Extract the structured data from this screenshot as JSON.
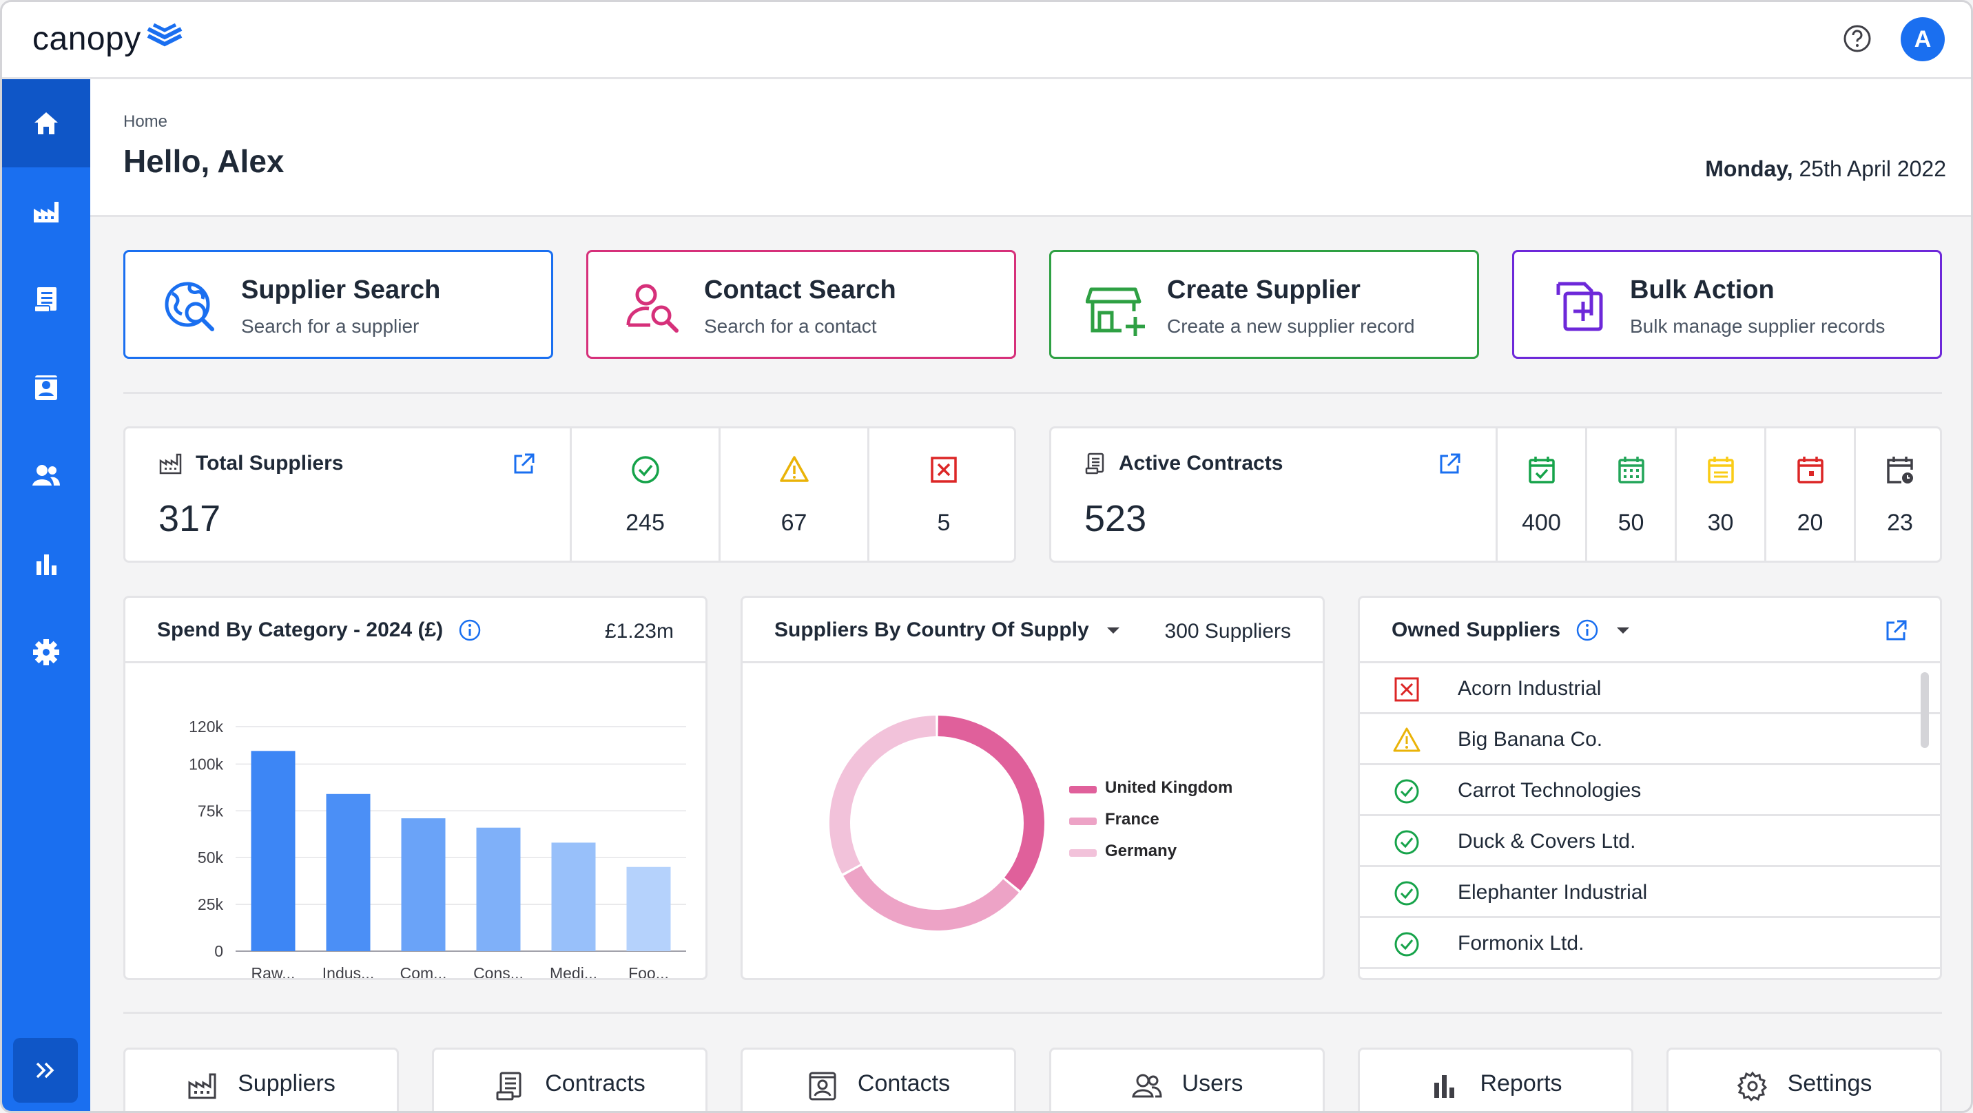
{
  "app": {
    "logo_text": "canopy",
    "avatar_initial": "A"
  },
  "header": {
    "breadcrumb": "Home",
    "greeting": "Hello, Alex",
    "date_day": "Monday,",
    "date_rest": "25th April 2022"
  },
  "actions": [
    {
      "title": "Supplier Search",
      "subtitle": "Search for a supplier",
      "color": "#1a6ff0",
      "icon": "globe-search-icon"
    },
    {
      "title": "Contact Search",
      "subtitle": "Search for a contact",
      "color": "#d6307a",
      "icon": "person-search-icon"
    },
    {
      "title": "Create Supplier",
      "subtitle": "Create a new supplier record",
      "color": "#2ea043",
      "icon": "store-add-icon"
    },
    {
      "title": "Bulk Action",
      "subtitle": "Bulk manage supplier records",
      "color": "#6d28d9",
      "icon": "bulk-add-icon"
    }
  ],
  "suppliers_stats": {
    "label": "Total Suppliers",
    "total": "317",
    "approved": "245",
    "warning": "67",
    "rejected": "5"
  },
  "contracts_stats": {
    "label": "Active Contracts",
    "total": "523",
    "values": [
      "400",
      "50",
      "30",
      "20",
      "23"
    ]
  },
  "spend_panel": {
    "title": "Spend By Category - 2024 (£)",
    "total": "£1.23m"
  },
  "country_panel": {
    "title": "Suppliers By Country Of Supply",
    "count": "300 Suppliers"
  },
  "owned_panel": {
    "title": "Owned Suppliers",
    "items": [
      {
        "name": "Acorn Industrial",
        "status": "rejected"
      },
      {
        "name": "Big Banana Co.",
        "status": "warning"
      },
      {
        "name": "Carrot Technologies",
        "status": "approved"
      },
      {
        "name": "Duck & Covers Ltd.",
        "status": "approved"
      },
      {
        "name": "Elephanter Industrial",
        "status": "approved"
      },
      {
        "name": "Formonix Ltd.",
        "status": "approved"
      }
    ]
  },
  "nav_cards": [
    "Suppliers",
    "Contracts",
    "Contacts",
    "Users",
    "Reports",
    "Settings"
  ],
  "chart_data": [
    {
      "type": "bar",
      "title": "Spend By Category - 2024 (£)",
      "categories": [
        "Raw...",
        "Indus...",
        "Com...",
        "Cons...",
        "Medi...",
        "Foo..."
      ],
      "values": [
        107000,
        84000,
        71000,
        66000,
        58000,
        45000
      ],
      "yticks": [
        "0",
        "25k",
        "50k",
        "75k",
        "100k",
        "120k"
      ],
      "ytick_values": [
        0,
        25000,
        50000,
        75000,
        100000,
        120000
      ],
      "ylim": [
        0,
        120000
      ],
      "colors": [
        "#3d86f5",
        "#4b8ff6",
        "#6aa3f8",
        "#7fb0f9",
        "#98c0fa",
        "#b5d2fc"
      ],
      "grid": true
    },
    {
      "type": "pie",
      "title": "Suppliers By Country Of Supply",
      "labels": [
        "United Kingdom",
        "France",
        "Germany"
      ],
      "values": [
        36,
        31,
        33
      ],
      "colors": [
        "#e0609b",
        "#eda3c6",
        "#f2c2da"
      ],
      "donut": true,
      "legend": "right"
    }
  ]
}
